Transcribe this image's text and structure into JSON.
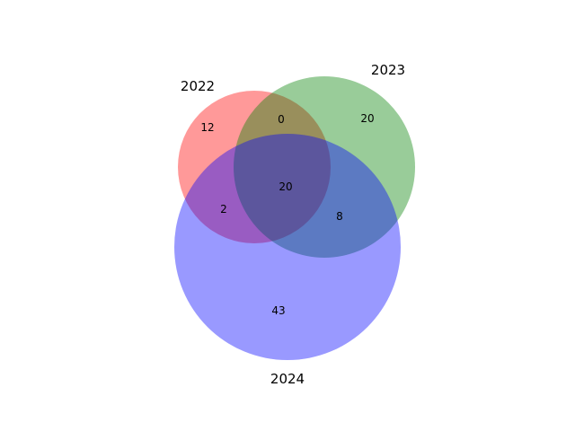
{
  "chart_data": {
    "type": "venn",
    "sets": [
      {
        "name": "2022",
        "color": "#ff0000"
      },
      {
        "name": "2023",
        "color": "#008000"
      },
      {
        "name": "2024",
        "color": "#0000ff"
      }
    ],
    "regions": {
      "only_2022": "12",
      "only_2023": "20",
      "only_2024": "43",
      "2022_and_2023_only": "0",
      "2022_and_2024_only": "2",
      "2023_and_2024_only": "8",
      "all_three": "20"
    }
  }
}
